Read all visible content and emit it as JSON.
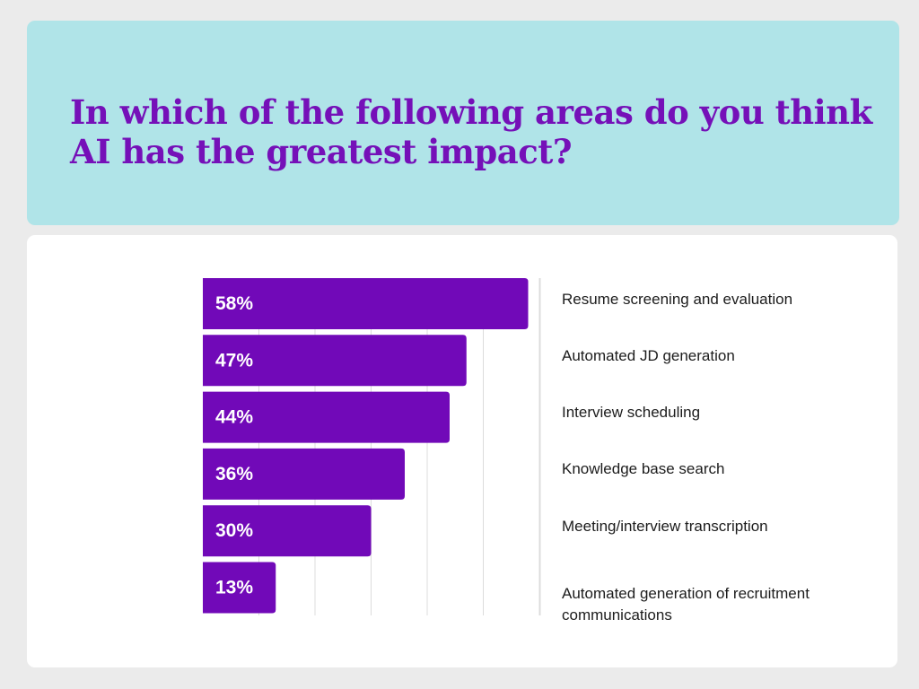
{
  "title": "In which of the following areas do you think AI has the greatest impact?",
  "colors": {
    "header_background": "#b0e4e8",
    "title_text": "#7510b8",
    "bar": "#7109b8",
    "bar_label": "#ffffff",
    "page_background": "#ebebeb",
    "card_background": "#ffffff"
  },
  "chart_data": {
    "type": "bar",
    "orientation": "horizontal",
    "title": "In which of the following areas do you think AI has the greatest impact?",
    "xlabel": "",
    "ylabel": "",
    "xlim": [
      0,
      60
    ],
    "grid": true,
    "legend": "none",
    "categories": [
      "Resume screening and evaluation",
      "Automated JD generation",
      "Interview scheduling",
      "Knowledge base search",
      "Meeting/interview transcription",
      "Automated generation of recruitment communications"
    ],
    "values": [
      58,
      47,
      44,
      36,
      30,
      13
    ],
    "value_labels": [
      "58%",
      "47%",
      "44%",
      "36%",
      "30%",
      "13%"
    ]
  }
}
